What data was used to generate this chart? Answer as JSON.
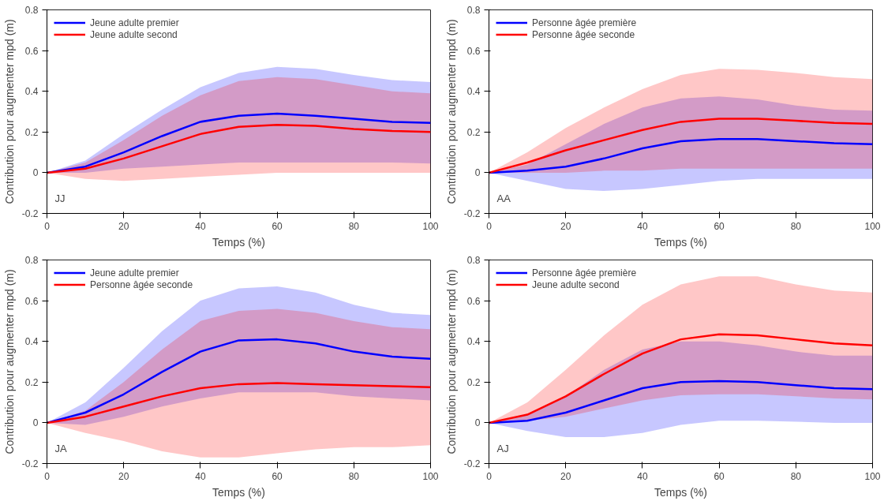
{
  "chart_data": [
    {
      "type": "line",
      "xlabel": "Temps (%)",
      "ylabel": "Contribution pour augmenter mpd (m)",
      "annotations": [
        "JJ"
      ],
      "x": [
        0,
        10,
        20,
        30,
        40,
        50,
        60,
        70,
        80,
        90,
        100
      ],
      "xlim": [
        0,
        100
      ],
      "xticks": [
        0,
        20,
        40,
        60,
        80,
        100
      ],
      "ylim": [
        -0.2,
        0.8
      ],
      "yticks": [
        -0.2,
        0,
        0.2,
        0.4,
        0.6,
        0.8
      ],
      "grid": false,
      "legend": "top left",
      "series": [
        {
          "name": "Jeune adulte premier",
          "color": "#0000ff",
          "values": [
            0,
            0.03,
            0.1,
            0.18,
            0.25,
            0.28,
            0.29,
            0.28,
            0.265,
            0.25,
            0.245
          ],
          "lower": [
            0,
            0.0,
            0.02,
            0.03,
            0.04,
            0.05,
            0.05,
            0.05,
            0.05,
            0.05,
            0.045
          ],
          "upper": [
            0,
            0.06,
            0.19,
            0.31,
            0.42,
            0.49,
            0.52,
            0.51,
            0.48,
            0.455,
            0.445
          ]
        },
        {
          "name": "Jeune adulte second",
          "color": "#ff0000",
          "values": [
            0,
            0.02,
            0.07,
            0.13,
            0.19,
            0.225,
            0.235,
            0.23,
            0.215,
            0.205,
            0.2
          ],
          "lower": [
            0,
            -0.03,
            -0.04,
            -0.03,
            -0.02,
            -0.01,
            0,
            0,
            0,
            0,
            0
          ],
          "upper": [
            0,
            0.05,
            0.16,
            0.28,
            0.38,
            0.45,
            0.47,
            0.46,
            0.43,
            0.4,
            0.39
          ]
        }
      ]
    },
    {
      "type": "line",
      "xlabel": "Temps (%)",
      "ylabel": "Contribution pour augmenter mpd (m)",
      "annotations": [
        "AA"
      ],
      "x": [
        0,
        10,
        20,
        30,
        40,
        50,
        60,
        70,
        80,
        90,
        100
      ],
      "xlim": [
        0,
        100
      ],
      "xticks": [
        0,
        20,
        40,
        60,
        80,
        100
      ],
      "ylim": [
        -0.2,
        0.8
      ],
      "yticks": [
        -0.2,
        0,
        0.2,
        0.4,
        0.6,
        0.8
      ],
      "grid": false,
      "legend": "top left",
      "series": [
        {
          "name": "Personne âgée première",
          "color": "#0000ff",
          "values": [
            0,
            0.01,
            0.03,
            0.07,
            0.12,
            0.155,
            0.165,
            0.165,
            0.155,
            0.145,
            0.14
          ],
          "lower": [
            0,
            -0.04,
            -0.08,
            -0.09,
            -0.08,
            -0.06,
            -0.04,
            -0.03,
            -0.03,
            -0.03,
            -0.03
          ],
          "upper": [
            0,
            0.04,
            0.14,
            0.24,
            0.32,
            0.365,
            0.375,
            0.36,
            0.33,
            0.31,
            0.305
          ]
        },
        {
          "name": "Personne âgée seconde",
          "color": "#ff0000",
          "values": [
            0,
            0.05,
            0.11,
            0.16,
            0.21,
            0.25,
            0.265,
            0.265,
            0.255,
            0.245,
            0.24
          ],
          "lower": [
            0,
            0,
            0,
            0.01,
            0.01,
            0.02,
            0.02,
            0.02,
            0.02,
            0.02,
            0.02
          ],
          "upper": [
            0,
            0.1,
            0.22,
            0.32,
            0.41,
            0.48,
            0.51,
            0.505,
            0.49,
            0.47,
            0.46
          ]
        }
      ]
    },
    {
      "type": "line",
      "xlabel": "Temps (%)",
      "ylabel": "Contribution pour augmenter mpd (m)",
      "annotations": [
        "JA"
      ],
      "x": [
        0,
        10,
        20,
        30,
        40,
        50,
        60,
        70,
        80,
        90,
        100
      ],
      "xlim": [
        0,
        100
      ],
      "xticks": [
        0,
        20,
        40,
        60,
        80,
        100
      ],
      "ylim": [
        -0.2,
        0.8
      ],
      "yticks": [
        -0.2,
        0,
        0.2,
        0.4,
        0.6,
        0.8
      ],
      "grid": false,
      "legend": "top left",
      "series": [
        {
          "name": "Jeune adulte premier",
          "color": "#0000ff",
          "values": [
            0,
            0.05,
            0.14,
            0.25,
            0.35,
            0.405,
            0.41,
            0.39,
            0.35,
            0.325,
            0.315
          ],
          "lower": [
            0,
            -0.01,
            0.03,
            0.08,
            0.12,
            0.15,
            0.15,
            0.15,
            0.13,
            0.12,
            0.11
          ],
          "upper": [
            0,
            0.1,
            0.27,
            0.45,
            0.6,
            0.66,
            0.67,
            0.64,
            0.58,
            0.54,
            0.53
          ]
        },
        {
          "name": "Personne âgée seconde",
          "color": "#ff0000",
          "values": [
            0,
            0.03,
            0.08,
            0.13,
            0.17,
            0.19,
            0.195,
            0.19,
            0.185,
            0.18,
            0.175
          ],
          "lower": [
            0,
            -0.05,
            -0.09,
            -0.14,
            -0.17,
            -0.17,
            -0.15,
            -0.13,
            -0.12,
            -0.12,
            -0.11
          ],
          "upper": [
            0,
            0.06,
            0.2,
            0.36,
            0.5,
            0.55,
            0.56,
            0.54,
            0.5,
            0.47,
            0.46
          ]
        }
      ]
    },
    {
      "type": "line",
      "xlabel": "Temps (%)",
      "ylabel": "Contribution pour augmenter mpd (m)",
      "annotations": [
        "AJ"
      ],
      "x": [
        0,
        10,
        20,
        30,
        40,
        50,
        60,
        70,
        80,
        90,
        100
      ],
      "xlim": [
        0,
        100
      ],
      "xticks": [
        0,
        20,
        40,
        60,
        80,
        100
      ],
      "ylim": [
        -0.2,
        0.8
      ],
      "yticks": [
        -0.2,
        0,
        0.2,
        0.4,
        0.6,
        0.8
      ],
      "grid": false,
      "legend": "top left",
      "series": [
        {
          "name": "Personne âgée première",
          "color": "#0000ff",
          "values": [
            0,
            0.01,
            0.05,
            0.11,
            0.17,
            0.2,
            0.205,
            0.2,
            0.185,
            0.17,
            0.165
          ],
          "lower": [
            0,
            -0.04,
            -0.07,
            -0.07,
            -0.05,
            -0.01,
            0.01,
            0.01,
            0.005,
            0,
            0
          ],
          "upper": [
            0,
            0.04,
            0.13,
            0.26,
            0.36,
            0.4,
            0.4,
            0.38,
            0.35,
            0.33,
            0.33
          ]
        },
        {
          "name": "Jeune adulte second",
          "color": "#ff0000",
          "values": [
            0,
            0.04,
            0.13,
            0.24,
            0.34,
            0.41,
            0.435,
            0.43,
            0.41,
            0.39,
            0.38
          ],
          "lower": [
            0,
            0.01,
            0.03,
            0.07,
            0.11,
            0.135,
            0.14,
            0.14,
            0.13,
            0.12,
            0.115
          ],
          "upper": [
            0,
            0.1,
            0.26,
            0.43,
            0.58,
            0.68,
            0.72,
            0.72,
            0.68,
            0.65,
            0.64
          ]
        }
      ]
    }
  ]
}
